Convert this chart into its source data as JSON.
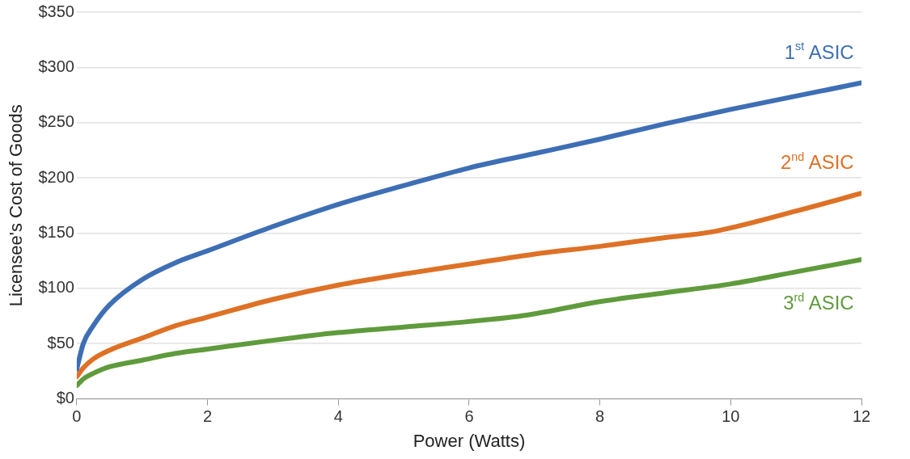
{
  "chart_data": {
    "type": "line",
    "xlabel": "Power (Watts)",
    "ylabel": "Licensee's Cost of Goods",
    "xlim": [
      0,
      12
    ],
    "xticks": [
      0,
      2,
      4,
      6,
      8,
      10,
      12
    ],
    "ylim": [
      0,
      350
    ],
    "yticks": [
      {
        "value": 0,
        "label": "$0"
      },
      {
        "value": 50,
        "label": "$50"
      },
      {
        "value": 100,
        "label": "$100"
      },
      {
        "value": 150,
        "label": "$150"
      },
      {
        "value": 200,
        "label": "$200"
      },
      {
        "value": 250,
        "label": "$250"
      },
      {
        "value": 300,
        "label": "$300"
      },
      {
        "value": 350,
        "label": "$350"
      }
    ],
    "grid": "y",
    "legend": false,
    "marker": "none",
    "line_style": "solid",
    "series": [
      {
        "name": "1$^{st}$ ASIC",
        "color": "#3e6fb5",
        "x": [
          0,
          0.1,
          0.25,
          0.5,
          1,
          1.5,
          2,
          3,
          4,
          5,
          6,
          7,
          8,
          9,
          10,
          11,
          12
        ],
        "values": [
          27,
          50,
          66,
          85,
          108,
          123,
          134,
          156,
          176,
          193,
          209,
          222,
          235,
          249,
          262,
          274,
          286
        ]
      },
      {
        "name": "2$^{nd}$ ASIC",
        "color": "#de7126",
        "x": [
          0,
          0.1,
          0.25,
          0.5,
          1,
          1.5,
          2,
          3,
          4,
          5,
          6,
          7,
          8,
          9,
          9.7,
          11,
          12
        ],
        "values": [
          20,
          28,
          36,
          44,
          55,
          66,
          74,
          90,
          103,
          113,
          122,
          131,
          138,
          146,
          151,
          170,
          186
        ]
      },
      {
        "name": "3$^{rd}$ ASIC",
        "color": "#5f9b3c",
        "x": [
          0,
          0.1,
          0.25,
          0.5,
          1,
          1.5,
          2,
          3,
          4,
          5,
          6,
          6.9,
          8,
          9,
          10,
          11,
          12
        ],
        "values": [
          12,
          18,
          23,
          29,
          35,
          41,
          45,
          53,
          60,
          65,
          70,
          76,
          88,
          96,
          104,
          115,
          126
        ]
      }
    ]
  }
}
